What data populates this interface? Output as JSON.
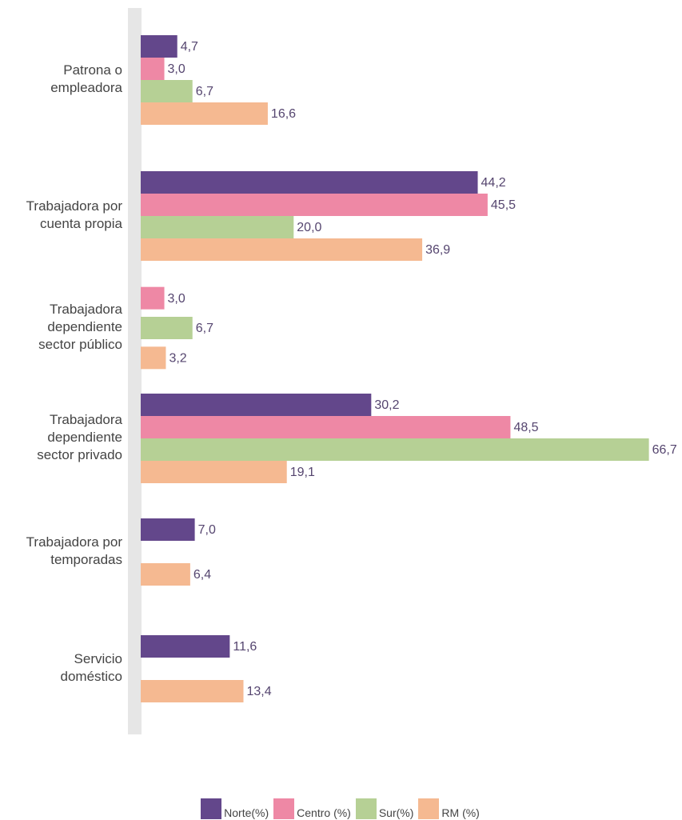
{
  "chart_data": {
    "type": "hbar",
    "categories": [
      [
        "Patrona o",
        "empleadora"
      ],
      [
        "Trabajadora por",
        "cuenta propia"
      ],
      [
        "Trabajadora",
        "dependiente",
        "sector público"
      ],
      [
        "Trabajadora",
        "dependiente",
        "sector privado"
      ],
      [
        "Trabajadora por",
        "temporadas"
      ],
      [
        "Servicio",
        "doméstico"
      ]
    ],
    "xlim": [
      0,
      70
    ],
    "series": [
      {
        "name": "Norte(%)",
        "color": "#63478b",
        "values": [
          4.7,
          44.2,
          null,
          30.2,
          7.0,
          11.6
        ],
        "value_labels": [
          "4,7",
          "44,2",
          null,
          "30,2",
          "7,0",
          "11,6"
        ]
      },
      {
        "name": "Centro (%)",
        "color": "#ee88a5",
        "values": [
          3.0,
          45.5,
          3.0,
          48.5,
          null,
          null
        ],
        "value_labels": [
          "3,0",
          "45,5",
          "3,0",
          "48,5",
          null,
          null
        ]
      },
      {
        "name": "Sur(%)",
        "color": "#b6d095",
        "values": [
          6.7,
          20.0,
          6.7,
          66.7,
          null,
          null
        ],
        "value_labels": [
          "6,7",
          "20,0",
          "6,7",
          "66,7",
          null,
          null
        ]
      },
      {
        "name": "RM (%)",
        "color": "#f5b991",
        "values": [
          16.6,
          36.9,
          3.2,
          19.1,
          6.4,
          13.4
        ],
        "value_labels": [
          "16,6",
          "36,9",
          "3,2",
          "19,1",
          "6,4",
          "13,4"
        ]
      }
    ]
  }
}
